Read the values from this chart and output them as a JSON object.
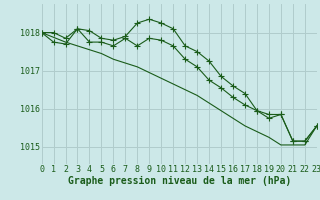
{
  "bg_color": "#cce8e8",
  "grid_color": "#b0cccc",
  "line_color": "#1a5c1a",
  "xlabel": "Graphe pression niveau de la mer (hPa)",
  "xlabel_color": "#1a5c1a",
  "xticks": [
    0,
    1,
    2,
    3,
    4,
    5,
    6,
    7,
    8,
    9,
    10,
    11,
    12,
    13,
    14,
    15,
    16,
    17,
    18,
    19,
    20,
    21,
    22,
    23
  ],
  "yticks": [
    1015,
    1016,
    1017,
    1018
  ],
  "ylim": [
    1014.55,
    1018.75
  ],
  "xlim": [
    0,
    23
  ],
  "line1_x": [
    0,
    1,
    2,
    3,
    4,
    5,
    6,
    7,
    8,
    9,
    10,
    11,
    12,
    13,
    14,
    15,
    16,
    17,
    18,
    19,
    20,
    21,
    22,
    23
  ],
  "line1_y": [
    1018.0,
    1018.0,
    1017.85,
    1018.1,
    1018.05,
    1017.85,
    1017.8,
    1017.9,
    1018.25,
    1018.35,
    1018.25,
    1018.1,
    1017.65,
    1017.5,
    1017.25,
    1016.85,
    1016.6,
    1016.4,
    1015.95,
    1015.85,
    1015.85,
    1015.15,
    1015.15,
    1015.55
  ],
  "line2_x": [
    0,
    1,
    2,
    3,
    4,
    5,
    6,
    7,
    8,
    9,
    10,
    11,
    12,
    13,
    14,
    15,
    16,
    17,
    18,
    19,
    20,
    21,
    22,
    23
  ],
  "line2_y": [
    1018.0,
    1017.75,
    1017.7,
    1018.1,
    1017.75,
    1017.75,
    1017.65,
    1017.85,
    1017.65,
    1017.85,
    1017.8,
    1017.65,
    1017.3,
    1017.1,
    1016.75,
    1016.55,
    1016.3,
    1016.1,
    1015.95,
    1015.75,
    1015.85,
    1015.15,
    1015.15,
    1015.55
  ],
  "line3_x": [
    0,
    2,
    3,
    5,
    6,
    7,
    8,
    9,
    10,
    11,
    12,
    13,
    14,
    15,
    16,
    17,
    18,
    19,
    20,
    21,
    22,
    23
  ],
  "line3_y": [
    1018.0,
    1017.75,
    1017.65,
    1017.45,
    1017.3,
    1017.2,
    1017.1,
    1016.95,
    1016.8,
    1016.65,
    1016.5,
    1016.35,
    1016.15,
    1015.95,
    1015.75,
    1015.55,
    1015.4,
    1015.25,
    1015.05,
    1015.05,
    1015.05,
    1015.55
  ],
  "tick_fontsize": 6.0,
  "xlabel_fontsize": 7.0
}
